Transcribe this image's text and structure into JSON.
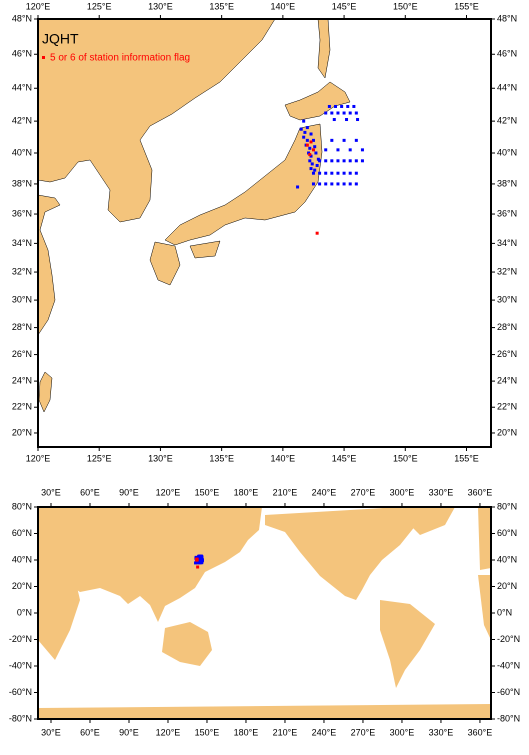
{
  "title": "JQHT",
  "legend": {
    "label": "5 or 6 of station information flag",
    "color": "#ff0000"
  },
  "maps": [
    {
      "projection": "mercator",
      "xlim": [
        120,
        157
      ],
      "ylim": [
        18.9,
        48
      ],
      "xticks": [
        {
          "value": 120,
          "label": "120°E"
        },
        {
          "value": 125,
          "label": "125°E"
        },
        {
          "value": 130,
          "label": "130°E"
        },
        {
          "value": 135,
          "label": "135°E"
        },
        {
          "value": 140,
          "label": "140°E"
        },
        {
          "value": 145,
          "label": "145°E"
        },
        {
          "value": 150,
          "label": "150°E"
        },
        {
          "value": 155,
          "label": "155°E"
        }
      ],
      "yticks": [
        {
          "value": 20,
          "label": "20°N"
        },
        {
          "value": 22,
          "label": "22°N"
        },
        {
          "value": 24,
          "label": "24°N"
        },
        {
          "value": 26,
          "label": "26°N"
        },
        {
          "value": 28,
          "label": "28°N"
        },
        {
          "value": 30,
          "label": "30°N"
        },
        {
          "value": 32,
          "label": "32°N"
        },
        {
          "value": 34,
          "label": "34°N"
        },
        {
          "value": 36,
          "label": "36°N"
        },
        {
          "value": 38,
          "label": "38°N"
        },
        {
          "value": 40,
          "label": "40°N"
        },
        {
          "value": 42,
          "label": "42°N"
        },
        {
          "value": 44,
          "label": "44°N"
        },
        {
          "value": 46,
          "label": "46°N"
        },
        {
          "value": 48,
          "label": "48°N"
        }
      ]
    },
    {
      "projection": "linear",
      "xlim": [
        20,
        368.5
      ],
      "ylim": [
        -80,
        80
      ],
      "xticks": [
        {
          "value": 30,
          "label": "30°E"
        },
        {
          "value": 60,
          "label": "60°E"
        },
        {
          "value": 90,
          "label": "90°E"
        },
        {
          "value": 120,
          "label": "120°E"
        },
        {
          "value": 150,
          "label": "150°E"
        },
        {
          "value": 180,
          "label": "180°E"
        },
        {
          "value": 210,
          "label": "210°E"
        },
        {
          "value": 240,
          "label": "240°E"
        },
        {
          "value": 270,
          "label": "270°E"
        },
        {
          "value": 300,
          "label": "300°E"
        },
        {
          "value": 330,
          "label": "330°E"
        },
        {
          "value": 360,
          "label": "360°E"
        }
      ],
      "yticks": [
        {
          "value": -80,
          "label": "-80°N"
        },
        {
          "value": -60,
          "label": "-60°N"
        },
        {
          "value": -40,
          "label": "-40°N"
        },
        {
          "value": -20,
          "label": "-20°N"
        },
        {
          "value": 0,
          "label": "0°N"
        },
        {
          "value": 20,
          "label": "20°N"
        },
        {
          "value": 40,
          "label": "40°N"
        },
        {
          "value": 60,
          "label": "60°N"
        },
        {
          "value": 80,
          "label": "80°N"
        }
      ]
    }
  ],
  "stations": {
    "color": "#0000ff",
    "lon": [
      141.5,
      141.8,
      141.7,
      142.0,
      141.9,
      142.2,
      142.1,
      142.3,
      142.2,
      142.4,
      142.3,
      142.6,
      142.8,
      142.9,
      142.7,
      142.6,
      142.5,
      142.3,
      142.0,
      141.7,
      141.2,
      142.5,
      143.0,
      143.5,
      144.0,
      144.5,
      145.0,
      145.5,
      146.0,
      142.5,
      143.0,
      143.5,
      144.0,
      144.5,
      145.0,
      145.5,
      146.0,
      143.0,
      143.5,
      144.0,
      144.5,
      145.0,
      145.5,
      146.0,
      146.5,
      143.5,
      144.5,
      145.5,
      146.5,
      144.0,
      145.0,
      146.0,
      143.5,
      144.0,
      144.5,
      145.0,
      145.5,
      146.0,
      143.8,
      144.3,
      144.8,
      145.3,
      145.8,
      144.2,
      145.2,
      146.1
    ],
    "lat": [
      41.5,
      41.3,
      41.0,
      40.8,
      40.5,
      40.3,
      40.0,
      39.8,
      39.5,
      39.3,
      39.0,
      38.9,
      39.2,
      39.6,
      40.0,
      40.4,
      40.8,
      41.2,
      41.6,
      42.0,
      37.8,
      38.0,
      38.0,
      38.0,
      38.0,
      38.0,
      38.0,
      38.0,
      38.0,
      38.7,
      38.7,
      38.7,
      38.7,
      38.7,
      38.7,
      38.7,
      38.7,
      39.5,
      39.5,
      39.5,
      39.5,
      39.5,
      39.5,
      39.5,
      39.5,
      40.2,
      40.2,
      40.2,
      40.2,
      40.8,
      40.8,
      40.8,
      42.5,
      42.5,
      42.5,
      42.5,
      42.5,
      42.5,
      42.9,
      42.9,
      42.9,
      42.9,
      42.9,
      42.1,
      42.1,
      42.1
    ]
  },
  "flagged": {
    "lon": [
      142.0,
      142.3,
      142.5,
      142.2,
      142.8
    ],
    "lat": [
      40.5,
      40.7,
      40.2,
      39.9,
      34.7
    ]
  }
}
